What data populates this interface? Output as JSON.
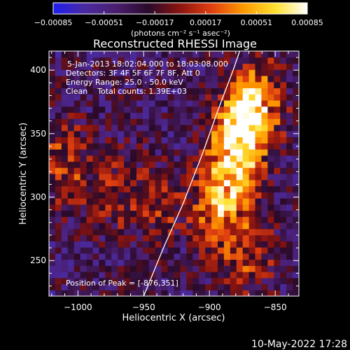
{
  "chart_data": {
    "type": "heatmap",
    "title": "Reconstructed RHESSI Image",
    "xlabel": "Heliocentric X (arcsec)",
    "ylabel": "Heliocentric Y (arcsec)",
    "xlim": [
      -1022,
      -832
    ],
    "ylim": [
      222,
      415
    ],
    "x_ticks": [
      {
        "value": -1000,
        "label": "−1000"
      },
      {
        "value": -950,
        "label": "−950"
      },
      {
        "value": -900,
        "label": "−900"
      },
      {
        "value": -850,
        "label": "−850"
      }
    ],
    "y_ticks": [
      {
        "value": 250,
        "label": "250"
      },
      {
        "value": 300,
        "label": "300"
      },
      {
        "value": 350,
        "label": "350"
      },
      {
        "value": 400,
        "label": "400"
      }
    ],
    "colorbar": {
      "min": -0.00085,
      "max": 0.00085,
      "tick_values": [
        -0.00085,
        -0.00051,
        -0.00017,
        0.00017,
        0.00051,
        0.00085
      ],
      "tick_labels": [
        "−0.00085",
        "−0.00051",
        "−0.00017",
        "0.00017",
        "0.00051",
        "0.00085"
      ],
      "unit_label": "(photons cm⁻² s⁻¹ asec⁻²)",
      "colormap": [
        "#1e1ef0",
        "#4a2aa0",
        "#4a1e6e",
        "#2a0a2a",
        "#8c1410",
        "#e04010",
        "#ff9a00",
        "#ffe030",
        "#ffffff"
      ]
    },
    "sources": [
      {
        "x": -876,
        "y": 351,
        "peak": 0.00085
      },
      {
        "x": -865,
        "y": 375,
        "peak": 0.00065
      },
      {
        "x": -885,
        "y": 315,
        "peak": 0.0006
      },
      {
        "x": -895,
        "y": 285,
        "peak": 0.00045
      },
      {
        "x": -870,
        "y": 255,
        "peak": 0.00035
      },
      {
        "x": -940,
        "y": 295,
        "peak": 0.00035
      },
      {
        "x": -1012,
        "y": 328,
        "peak": 0.0004
      },
      {
        "x": -975,
        "y": 305,
        "peak": 0.0003
      }
    ],
    "limb_curve": [
      [
        -950,
        222
      ],
      [
        -935,
        260
      ],
      [
        -920,
        295
      ],
      [
        -905,
        335
      ],
      [
        -893,
        370
      ],
      [
        -882,
        400
      ],
      [
        -877,
        415
      ]
    ],
    "info_lines": [
      "5-Jan-2013 18:02:04.000 to 18:03:08.000",
      "Detectors: 3F 4F 5F 6F 7F 8F, Att 0",
      "Energy Range: 25.0 - 50.0 keV",
      "Clean    Total counts: 1.39E+03"
    ],
    "peak_label": "Position of Peak = [-876,351]"
  },
  "timestamp": "10-May-2022 17:28"
}
